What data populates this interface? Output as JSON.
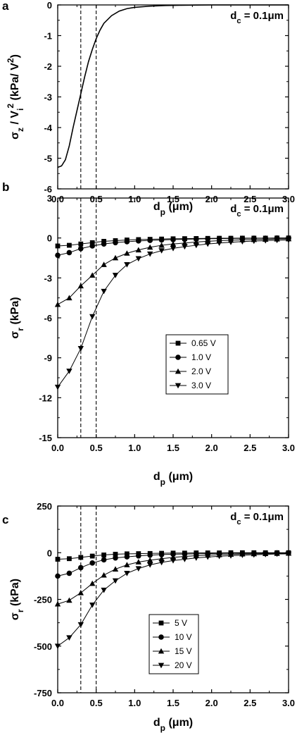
{
  "chart_data": [
    {
      "type": "line",
      "panel": "a",
      "annotation": "d_c = 0.1μm",
      "xlabel": "d_p (μm)",
      "ylabel": "σ_z / V_i^2 (kPa/ V^2)",
      "xlim": [
        0,
        3.0
      ],
      "ylim": [
        -6,
        0
      ],
      "xticks": [
        "0.0",
        "0.5",
        "1.0",
        "1.5",
        "2.0",
        "2.5",
        "3.0"
      ],
      "yticks": [
        "0",
        "-1",
        "-2",
        "-3",
        "-4",
        "-5",
        "-6"
      ],
      "vlines": [
        0.3,
        0.5
      ],
      "series": [
        {
          "marker": "none",
          "x": [
            0.0,
            0.05,
            0.1,
            0.15,
            0.2,
            0.25,
            0.3,
            0.35,
            0.4,
            0.45,
            0.5,
            0.55,
            0.6,
            0.7,
            0.8,
            0.9,
            1.0,
            1.2,
            1.4,
            1.6,
            1.8,
            2.0,
            2.5,
            3.0
          ],
          "y": [
            -5.3,
            -5.25,
            -5.05,
            -4.6,
            -4.0,
            -3.45,
            -2.9,
            -2.35,
            -1.85,
            -1.45,
            -1.1,
            -0.82,
            -0.6,
            -0.35,
            -0.2,
            -0.12,
            -0.08,
            -0.04,
            -0.02,
            -0.01,
            -0.005,
            0.0,
            0.0,
            0.0
          ]
        }
      ]
    },
    {
      "type": "line",
      "panel": "b",
      "annotation": "d_c = 0.1μm",
      "xlabel": "d_p (μm)",
      "ylabel": "σ_r (kPa)",
      "xlim": [
        0,
        3.0
      ],
      "ylim": [
        -15,
        3
      ],
      "xticks": [
        "0.0",
        "0.5",
        "1.0",
        "1.5",
        "2.0",
        "2.5",
        "3.0"
      ],
      "yticks": [
        "3",
        "0",
        "-3",
        "-6",
        "-9",
        "-12",
        "-15"
      ],
      "vlines": [
        0.3,
        0.5
      ],
      "legend": "center-right",
      "series": [
        {
          "name": "0.65 V",
          "marker": "square",
          "x": [
            0.0,
            0.15,
            0.3,
            0.45,
            0.6,
            0.75,
            0.9,
            1.05,
            1.2,
            1.35,
            1.5,
            1.65,
            1.8,
            1.95,
            2.1,
            2.25,
            2.4,
            2.55,
            2.7,
            2.85,
            3.0
          ],
          "y": [
            -0.6,
            -0.55,
            -0.45,
            -0.35,
            -0.25,
            -0.2,
            -0.15,
            -0.12,
            -0.1,
            -0.08,
            -0.06,
            -0.05,
            -0.04,
            -0.03,
            -0.02,
            -0.02,
            -0.01,
            -0.01,
            -0.01,
            0.0,
            0.0
          ]
        },
        {
          "name": "1.0 V",
          "marker": "circle",
          "x": [
            0.0,
            0.15,
            0.3,
            0.45,
            0.6,
            0.75,
            0.9,
            1.05,
            1.2,
            1.35,
            1.5,
            1.65,
            1.8,
            1.95,
            2.1,
            2.25,
            2.4,
            2.55,
            2.7,
            2.85,
            3.0
          ],
          "y": [
            -1.3,
            -1.1,
            -0.8,
            -0.6,
            -0.45,
            -0.35,
            -0.28,
            -0.22,
            -0.18,
            -0.15,
            -0.12,
            -0.1,
            -0.08,
            -0.06,
            -0.05,
            -0.04,
            -0.03,
            -0.02,
            -0.02,
            -0.01,
            -0.01
          ]
        },
        {
          "name": "2.0 V",
          "marker": "triangle-up",
          "x": [
            0.0,
            0.15,
            0.3,
            0.45,
            0.6,
            0.75,
            0.9,
            1.05,
            1.2,
            1.35,
            1.5,
            1.65,
            1.8,
            1.95,
            2.1,
            2.25,
            2.4,
            2.55,
            2.7,
            2.85,
            3.0
          ],
          "y": [
            -5.0,
            -4.5,
            -3.6,
            -2.8,
            -2.0,
            -1.5,
            -1.15,
            -0.9,
            -0.7,
            -0.55,
            -0.45,
            -0.38,
            -0.3,
            -0.25,
            -0.2,
            -0.17,
            -0.14,
            -0.12,
            -0.1,
            -0.08,
            -0.07
          ]
        },
        {
          "name": "3.0 V",
          "marker": "triangle-down",
          "x": [
            0.0,
            0.15,
            0.3,
            0.45,
            0.6,
            0.75,
            0.9,
            1.05,
            1.2,
            1.35,
            1.5,
            1.65,
            1.8,
            1.95,
            2.1,
            2.25,
            2.4,
            2.55,
            2.7,
            2.85,
            3.0
          ],
          "y": [
            -11.2,
            -10.0,
            -8.3,
            -5.9,
            -4.0,
            -2.8,
            -2.0,
            -1.55,
            -1.2,
            -0.95,
            -0.78,
            -0.65,
            -0.55,
            -0.45,
            -0.38,
            -0.32,
            -0.27,
            -0.23,
            -0.2,
            -0.17,
            -0.15
          ]
        }
      ]
    },
    {
      "type": "line",
      "panel": "c",
      "annotation": "d_c = 0.1μm",
      "xlabel": "d_p (μm)",
      "ylabel": "σ_r (kPa)",
      "xlim": [
        0,
        3.0
      ],
      "ylim": [
        -750,
        250
      ],
      "xticks": [
        "0.0",
        "0.5",
        "1.0",
        "1.5",
        "2.0",
        "2.5",
        "3.0"
      ],
      "yticks": [
        "250",
        "0",
        "-250",
        "-500",
        "-750"
      ],
      "vlines": [
        0.3,
        0.5
      ],
      "legend": "center-right",
      "series": [
        {
          "name": "5 V",
          "marker": "square",
          "x": [
            0.0,
            0.15,
            0.3,
            0.45,
            0.6,
            0.75,
            0.9,
            1.05,
            1.2,
            1.35,
            1.5,
            1.65,
            1.8,
            1.95,
            2.1,
            2.25,
            2.4,
            2.55,
            2.7,
            2.85,
            3.0
          ],
          "y": [
            -35,
            -32,
            -25,
            -18,
            -12,
            -8,
            -6,
            -5,
            -4,
            -3,
            -2,
            -2,
            -1,
            -1,
            -1,
            0,
            0,
            0,
            0,
            0,
            0
          ]
        },
        {
          "name": "10 V",
          "marker": "circle",
          "x": [
            0.0,
            0.15,
            0.3,
            0.45,
            0.6,
            0.75,
            0.9,
            1.05,
            1.2,
            1.35,
            1.5,
            1.65,
            1.8,
            1.95,
            2.1,
            2.25,
            2.4,
            2.55,
            2.7,
            2.85,
            3.0
          ],
          "y": [
            -125,
            -110,
            -80,
            -55,
            -38,
            -28,
            -22,
            -17,
            -13,
            -10,
            -8,
            -7,
            -6,
            -5,
            -4,
            -3,
            -3,
            -2,
            -2,
            -1,
            -1
          ]
        },
        {
          "name": "15 V",
          "marker": "triangle-up",
          "x": [
            0.0,
            0.15,
            0.3,
            0.45,
            0.6,
            0.75,
            0.9,
            1.05,
            1.2,
            1.35,
            1.5,
            1.65,
            1.8,
            1.95,
            2.1,
            2.25,
            2.4,
            2.55,
            2.7,
            2.85,
            3.0
          ],
          "y": [
            -275,
            -255,
            -215,
            -165,
            -120,
            -88,
            -65,
            -50,
            -40,
            -32,
            -25,
            -20,
            -16,
            -13,
            -11,
            -9,
            -7,
            -6,
            -5,
            -4,
            -3
          ]
        },
        {
          "name": "20 V",
          "marker": "triangle-down",
          "x": [
            0.0,
            0.15,
            0.3,
            0.45,
            0.6,
            0.75,
            0.9,
            1.05,
            1.2,
            1.35,
            1.5,
            1.65,
            1.8,
            1.95,
            2.1,
            2.25,
            2.4,
            2.55,
            2.7,
            2.85,
            3.0
          ],
          "y": [
            -500,
            -455,
            -385,
            -280,
            -200,
            -150,
            -110,
            -85,
            -65,
            -52,
            -42,
            -35,
            -28,
            -23,
            -19,
            -16,
            -13,
            -11,
            -9,
            -7,
            -6
          ]
        }
      ]
    }
  ]
}
